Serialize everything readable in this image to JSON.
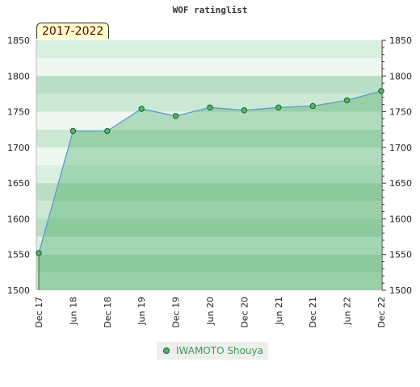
{
  "chart_data": {
    "type": "area",
    "title": "WOF ratinglist",
    "period_label": "2017-2022",
    "ylim": [
      1500,
      1850
    ],
    "y_ticks": [
      1500,
      1550,
      1600,
      1650,
      1700,
      1750,
      1800,
      1850
    ],
    "x_ticks": [
      "Dec 17",
      "Jun 18",
      "Dec 18",
      "Jun 19",
      "Dec 19",
      "Jun 20",
      "Dec 20",
      "Jun 21",
      "Dec 21",
      "Jun 22",
      "Dec 22"
    ],
    "series": [
      {
        "name": "IWAMOTO Shouya",
        "x": [
          "Dec 17",
          "Jun 18",
          "Dec 18",
          "Jun 19",
          "Dec 19",
          "Jun 20",
          "Dec 20",
          "Jun 21",
          "Dec 21",
          "Jun 22",
          "Dec 22"
        ],
        "values": [
          1552,
          1723,
          1723,
          1754,
          1744,
          1756,
          1752,
          1756,
          1758,
          1766,
          1779
        ]
      }
    ],
    "legend_position": "bottom-center",
    "grid": true
  },
  "colors": {
    "line": "#5b9bd5",
    "marker_fill": "#52b36c",
    "marker_stroke": "#1f5f2f",
    "area_fill": "#2e9e4f",
    "legend_text": "#3e9a55"
  }
}
